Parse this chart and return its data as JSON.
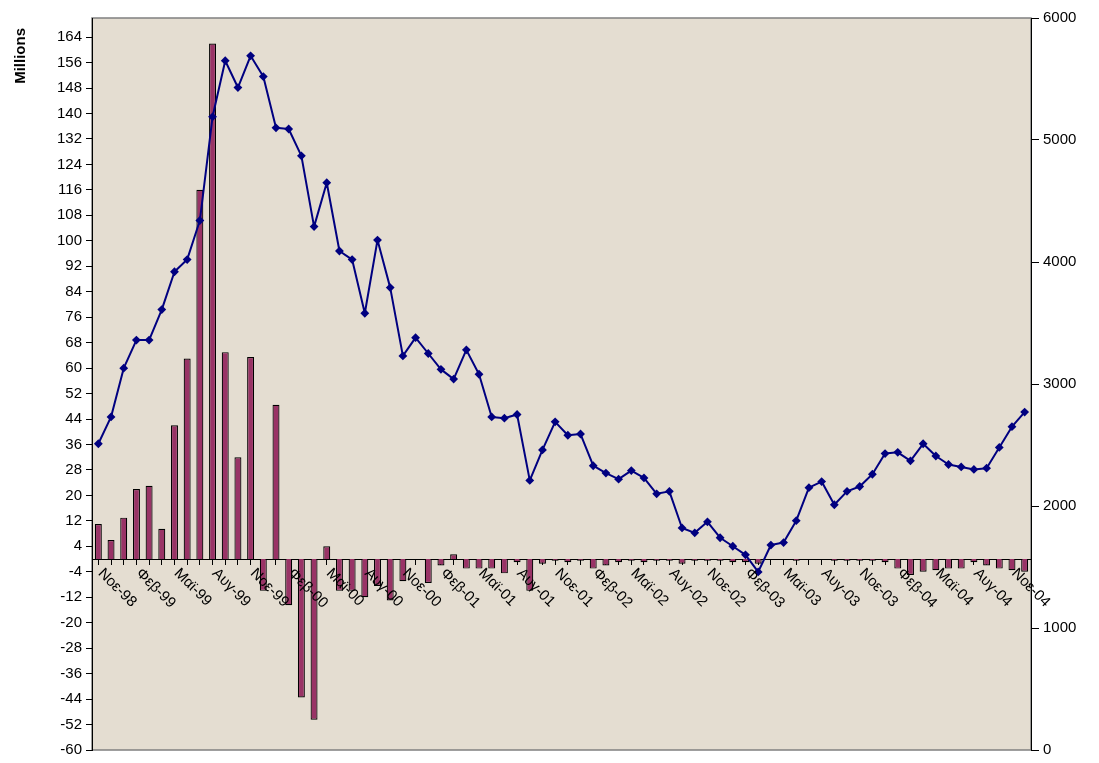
{
  "chart_data": {
    "type": "bar",
    "ylabel": "Millions",
    "categories": [
      "Νοε-98",
      null,
      null,
      "Φεβ-99",
      null,
      null,
      "Μαϊ-99",
      null,
      null,
      "Αυγ-99",
      null,
      null,
      "Νοε-99",
      null,
      null,
      "Φεβ-00",
      null,
      null,
      "Μαϊ-00",
      null,
      null,
      "Αυγ-00",
      null,
      null,
      "Νοε-00",
      null,
      null,
      "Φεβ-01",
      null,
      null,
      "Μαϊ-01",
      null,
      null,
      "Αυγ-01",
      null,
      null,
      "Νοε-01",
      null,
      null,
      "Φεβ-02",
      null,
      null,
      "Μαϊ-02",
      null,
      null,
      "Αυγ-02",
      null,
      null,
      "Νοε-02",
      null,
      null,
      "Φεβ-03",
      null,
      null,
      "Μαϊ-03",
      null,
      null,
      "Αυγ-03",
      null,
      null,
      "Νοε-03",
      null,
      null,
      "Φεβ-04",
      null,
      null,
      "Μαϊ-04",
      null,
      null,
      "Αυγ-04",
      null,
      null,
      "Νοε-04",
      null
    ],
    "series": [
      {
        "color": "#993366",
        "values": [
          11,
          6,
          13,
          22,
          23,
          9.5,
          42,
          63,
          116,
          162,
          65,
          32,
          63.5,
          -10,
          48.5,
          -14.5,
          -43.5,
          -50.5,
          4,
          -10,
          -10,
          -12,
          -8.5,
          -13,
          -7,
          0,
          -7.5,
          -2,
          1.5,
          -3,
          -3,
          -3,
          -4.5,
          -1,
          -10,
          -1.5,
          -0.5,
          -1,
          -0.5,
          -3,
          -2,
          -1,
          -0.5,
          -1,
          -0.5,
          -0.5,
          -1.5,
          -0.5,
          -0.5,
          -0.5,
          -1,
          -1,
          -1.5,
          0,
          0,
          -0.5,
          0,
          0,
          -0.5,
          -0.5,
          -0.5,
          -0.5,
          -1,
          -3,
          -5,
          -4,
          -3.5,
          -3,
          -3,
          -1,
          -2,
          -3,
          -3.5,
          -4
        ]
      },
      {
        "type": "line",
        "axis": "y2",
        "color": "#000080",
        "values": [
          2510,
          2730,
          3130,
          3360,
          3360,
          3610,
          3920,
          4020,
          4340,
          5190,
          5650,
          5430,
          5690,
          5520,
          5100,
          5090,
          4870,
          4290,
          4650,
          4090,
          4020,
          3580,
          4180,
          3790,
          3230,
          3380,
          3250,
          3120,
          3040,
          3280,
          3080,
          2730,
          2720,
          2750,
          2210,
          2460,
          2690,
          2580,
          2590,
          2330,
          2270,
          2220,
          2290,
          2230,
          2100,
          2120,
          1820,
          1780,
          1870,
          1740,
          1670,
          1600,
          1460,
          1680,
          1700,
          1880,
          2150,
          2200,
          2010,
          2120,
          2160,
          2260,
          2430,
          2440,
          2370,
          2510,
          2410,
          2340,
          2320,
          2300,
          2310,
          2480,
          2650,
          2770
        ]
      }
    ],
    "ylim": [
      -60,
      170
    ],
    "yticks": [
      -60,
      -52,
      -44,
      -36,
      -28,
      -20,
      -12,
      -4,
      4,
      12,
      20,
      28,
      36,
      44,
      52,
      60,
      68,
      76,
      84,
      92,
      100,
      108,
      116,
      124,
      132,
      140,
      148,
      156,
      164
    ],
    "y2lim": [
      0,
      6000
    ],
    "y2ticks": [
      0,
      1000,
      2000,
      3000,
      4000,
      5000,
      6000
    ],
    "grid": false,
    "marker": "diamond",
    "line_style": "solid"
  }
}
